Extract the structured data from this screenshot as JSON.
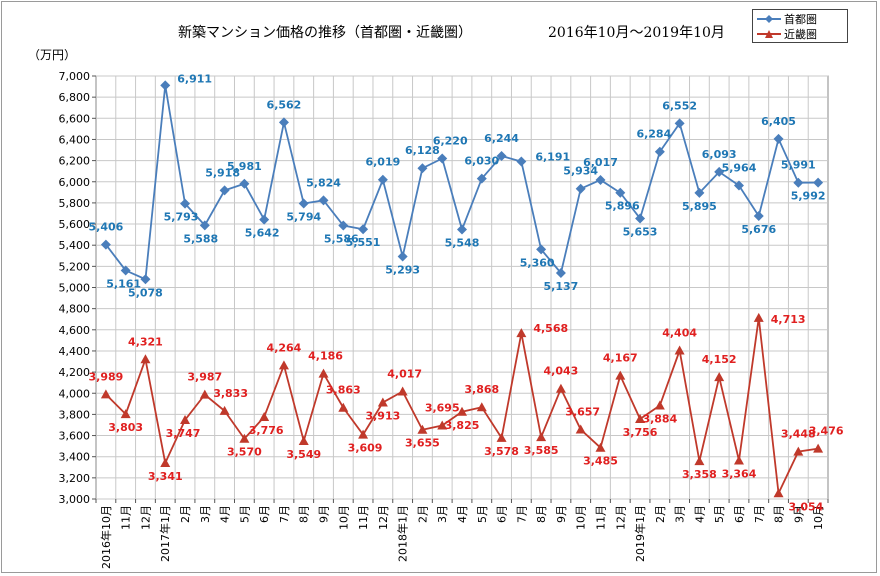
{
  "chart_data": {
    "type": "line",
    "title": "新築マンション価格の推移（首都圏・近畿圏）",
    "subtitle": "2016年10月～2019年10月",
    "ylabel": "（万円）",
    "ylim": [
      3000,
      7000
    ],
    "ytick_step": 200,
    "yticks": [
      "3,000",
      "3,200",
      "3,400",
      "3,600",
      "3,800",
      "4,000",
      "4,200",
      "4,400",
      "4,600",
      "4,800",
      "5,000",
      "5,200",
      "5,400",
      "5,600",
      "5,800",
      "6,000",
      "6,200",
      "6,400",
      "6,600",
      "6,800",
      "7,000"
    ],
    "categories": [
      "2016年10月",
      "11月",
      "12月",
      "2017年1月",
      "2月",
      "3月",
      "4月",
      "5月",
      "6月",
      "7月",
      "8月",
      "9月",
      "10月",
      "11月",
      "12月",
      "2018年1月",
      "2月",
      "3月",
      "4月",
      "5月",
      "6月",
      "7月",
      "8月",
      "9月",
      "10月",
      "11月",
      "12月",
      "2019年1月",
      "2月",
      "3月",
      "4月",
      "5月",
      "6月",
      "7月",
      "8月",
      "9月",
      "10月"
    ],
    "grid": true,
    "legend_position": "top-right",
    "series": [
      {
        "name": "首都圏",
        "color": "#4a7ebb",
        "label_color": "#1f77b4",
        "marker": "diamond",
        "values": [
          5406,
          5161,
          5078,
          6911,
          5793,
          5588,
          5918,
          5981,
          5642,
          6562,
          5794,
          5824,
          5586,
          5551,
          6019,
          5293,
          6128,
          6220,
          5548,
          6030,
          6244,
          6191,
          5360,
          5137,
          5934,
          6017,
          5896,
          5653,
          6284,
          6552,
          5895,
          6093,
          5964,
          5676,
          6405,
          5991,
          5992
        ],
        "labels": [
          "5,406",
          "5,161",
          "5,078",
          "6,911",
          "5,793",
          "5,588",
          "5,918",
          "5,981",
          "5,642",
          "6,562",
          "5,794",
          "5,824",
          "5,586",
          "5,551",
          "6,019",
          "5,293",
          "6,128",
          "6,220",
          "5,548",
          "6,030",
          "6,244",
          "6,191",
          "5,360",
          "5,137",
          "5,934",
          "6,017",
          "5,896",
          "5,653",
          "6,284",
          "6,552",
          "5,895",
          "6,093",
          "5,964",
          "5,676",
          "6,405",
          "5,991",
          "5,992"
        ]
      },
      {
        "name": "近畿圏",
        "color": "#c0392b",
        "label_color": "#e02020",
        "marker": "triangle",
        "values": [
          3989,
          3803,
          4321,
          3341,
          3747,
          3987,
          3833,
          3570,
          3776,
          4264,
          3549,
          4186,
          3863,
          3609,
          3913,
          4017,
          3655,
          3695,
          3825,
          3868,
          3578,
          4568,
          3585,
          4043,
          3657,
          3485,
          4167,
          3756,
          3884,
          4404,
          3358,
          4152,
          3364,
          4713,
          3054,
          3448,
          3476
        ],
        "labels": [
          "3,989",
          "3,803",
          "4,321",
          "3,341",
          "3,747",
          "3,987",
          "3,833",
          "3,570",
          "3,776",
          "4,264",
          "3,549",
          "4,186",
          "3,863",
          "3,609",
          "3,913",
          "4,017",
          "3,655",
          "3,695",
          "3,825",
          "3,868",
          "3,578",
          "4,568",
          "3,585",
          "4,043",
          "3,657",
          "3,485",
          "4,167",
          "3,756",
          "3,884",
          "4,404",
          "3,358",
          "4,152",
          "3,364",
          "4,713",
          "3,054",
          "3,448",
          "3,476"
        ]
      }
    ]
  }
}
